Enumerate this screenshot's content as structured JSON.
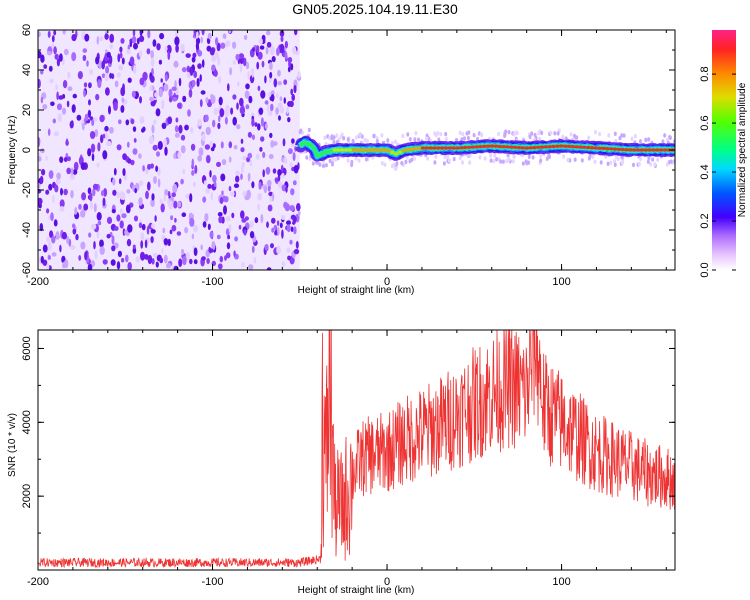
{
  "page": {
    "title": "GN05.2025.104.19.11.E30"
  },
  "colors": {
    "spectrogram_noise": "#7c3cf0",
    "spectrogram_ridge": "#e0322c",
    "snr_line": "#ee3333",
    "frame": "#000000"
  },
  "colorbar": {
    "label": "Normalized spectral amplitude",
    "ticks": [
      "0.0",
      "0.2",
      "0.4",
      "0.6",
      "0.8"
    ],
    "tick_values": [
      0.0,
      0.2,
      0.4,
      0.6,
      0.8
    ],
    "range": [
      0,
      0.98
    ],
    "colormap": "rainbow"
  },
  "chart_data": [
    {
      "type": "heatmap",
      "title": "GN05.2025.104.19.11.E30",
      "xlabel": "Height of straight line (km)",
      "ylabel": "Frequency (Hz)",
      "xlim": [
        -200,
        165
      ],
      "ylim": [
        -60,
        60
      ],
      "x_ticks": [
        -200,
        -100,
        0,
        100
      ],
      "x_tick_labels": [
        "-200",
        "-100",
        "0",
        "100"
      ],
      "y_ticks": [
        -60,
        -40,
        -20,
        0,
        20,
        40,
        60
      ],
      "y_tick_labels": [
        "-60",
        "-40",
        "-20",
        "0",
        "20",
        "40",
        "60"
      ],
      "noise_region_x": [
        -200,
        -50
      ],
      "ridge": {
        "x": [
          -50,
          -47,
          -45,
          -42,
          -40,
          -35,
          -30,
          -20,
          -10,
          0,
          5,
          10,
          20,
          40,
          60,
          80,
          100,
          120,
          140,
          165
        ],
        "frequency": [
          2,
          4,
          3,
          1,
          -3,
          -1,
          0,
          0,
          0,
          0,
          -2,
          0,
          1,
          1,
          2,
          1,
          2,
          1,
          0,
          0
        ],
        "amplitude": [
          0.3,
          0.5,
          0.6,
          0.6,
          0.5,
          0.55,
          0.6,
          0.7,
          0.75,
          0.75,
          0.6,
          0.8,
          0.85,
          0.9,
          0.9,
          0.92,
          0.95,
          0.95,
          0.9,
          0.9
        ]
      }
    },
    {
      "type": "line",
      "xlabel": "Height of straight line (km)",
      "ylabel": "SNR (10 * v/v)",
      "xlim": [
        -200,
        165
      ],
      "ylim": [
        0,
        6500
      ],
      "x_ticks": [
        -200,
        -100,
        0,
        100
      ],
      "x_tick_labels": [
        "-200",
        "-100",
        "0",
        "100"
      ],
      "y_ticks": [
        2000,
        4000,
        6000
      ],
      "y_tick_labels": [
        "2000",
        "4000",
        "6000"
      ],
      "series": [
        {
          "x": [
            -200,
            -150,
            -100,
            -50,
            -38,
            -37,
            -35,
            -33,
            -30,
            -25,
            -20,
            -15,
            -10,
            0,
            10,
            20,
            30,
            40,
            50,
            60,
            70,
            80,
            85,
            90,
            100,
            110,
            120,
            130,
            140,
            150,
            160,
            165
          ],
          "y": [
            200,
            200,
            200,
            200,
            300,
            4300,
            2500,
            5600,
            1800,
            1700,
            2600,
            3000,
            3100,
            3200,
            3500,
            3700,
            3900,
            4200,
            4500,
            4800,
            5000,
            4800,
            6300,
            4400,
            4000,
            3600,
            3200,
            3000,
            2800,
            2600,
            2500,
            2400
          ]
        }
      ]
    }
  ]
}
